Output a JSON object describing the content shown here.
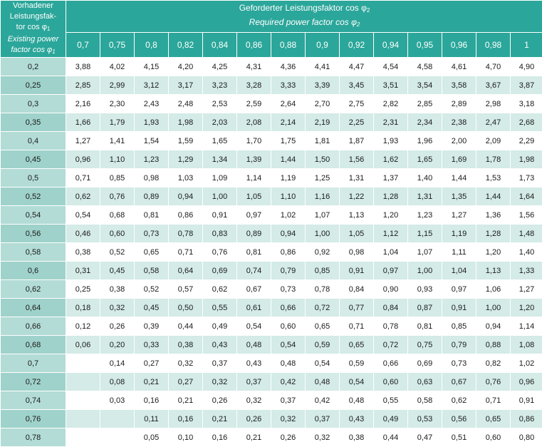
{
  "header": {
    "corner_de": [
      "Vorhadener",
      "Leistungsfak-",
      "tor cos φ"
    ],
    "corner_de_sub": "1",
    "corner_en": [
      "Existing power",
      "factor cos φ"
    ],
    "corner_en_sub": "1",
    "title_de": "Geforderter Leistungsfaktor cos φ",
    "title_de_sub": "2",
    "title_en": "Required power factor cos φ",
    "title_en_sub": "2",
    "columns": [
      "0,7",
      "0,75",
      "0,8",
      "0,82",
      "0,84",
      "0,86",
      "0,88",
      "0,9",
      "0,92",
      "0,94",
      "0,95",
      "0,96",
      "0,98",
      "1"
    ]
  },
  "rows": [
    {
      "label": "0,2",
      "values": [
        "3,88",
        "4,02",
        "4,15",
        "4,20",
        "4,25",
        "4,31",
        "4,36",
        "4,41",
        "4,47",
        "4,54",
        "4,58",
        "4,61",
        "4,70",
        "4,90"
      ]
    },
    {
      "label": "0,25",
      "values": [
        "2,85",
        "2,99",
        "3,12",
        "3,17",
        "3,23",
        "3,28",
        "3,33",
        "3,39",
        "3,45",
        "3,51",
        "3,54",
        "3,58",
        "3,67",
        "3,87"
      ]
    },
    {
      "label": "0,3",
      "values": [
        "2,16",
        "2,30",
        "2,43",
        "2,48",
        "2,53",
        "2,59",
        "2,64",
        "2,70",
        "2,75",
        "2,82",
        "2,85",
        "2,89",
        "2,98",
        "3,18"
      ]
    },
    {
      "label": "0,35",
      "values": [
        "1,66",
        "1,79",
        "1,93",
        "1,98",
        "2,03",
        "2,08",
        "2,14",
        "2,19",
        "2,25",
        "2,31",
        "2,34",
        "2,38",
        "2,47",
        "2,68"
      ]
    },
    {
      "label": "0,4",
      "values": [
        "1,27",
        "1,41",
        "1,54",
        "1,59",
        "1,65",
        "1,70",
        "1,75",
        "1,81",
        "1,87",
        "1,93",
        "1,96",
        "2,00",
        "2,09",
        "2,29"
      ]
    },
    {
      "label": "0,45",
      "values": [
        "0,96",
        "1,10",
        "1,23",
        "1,29",
        "1,34",
        "1,39",
        "1,44",
        "1,50",
        "1,56",
        "1,62",
        "1,65",
        "1,69",
        "1,78",
        "1,98"
      ]
    },
    {
      "label": "0,5",
      "values": [
        "0,71",
        "0,85",
        "0,98",
        "1,03",
        "1,09",
        "1,14",
        "1,19",
        "1,25",
        "1,31",
        "1,37",
        "1,40",
        "1,44",
        "1,53",
        "1,73"
      ]
    },
    {
      "label": "0,52",
      "values": [
        "0,62",
        "0,76",
        "0,89",
        "0,94",
        "1,00",
        "1,05",
        "1,10",
        "1,16",
        "1,22",
        "1,28",
        "1,31",
        "1,35",
        "1,44",
        "1,64"
      ]
    },
    {
      "label": "0,54",
      "values": [
        "0,54",
        "0,68",
        "0,81",
        "0,86",
        "0,91",
        "0,97",
        "1,02",
        "1,07",
        "1,13",
        "1,20",
        "1,23",
        "1,27",
        "1,36",
        "1,56"
      ]
    },
    {
      "label": "0,56",
      "values": [
        "0,46",
        "0,60",
        "0,73",
        "0,78",
        "0,83",
        "0,89",
        "0,94",
        "1,00",
        "1,05",
        "1,12",
        "1,15",
        "1,19",
        "1,28",
        "1,48"
      ]
    },
    {
      "label": "0,58",
      "values": [
        "0,38",
        "0,52",
        "0,65",
        "0,71",
        "0,76",
        "0,81",
        "0,86",
        "0,92",
        "0,98",
        "1,04",
        "1,07",
        "1,11",
        "1,20",
        "1,40"
      ]
    },
    {
      "label": "0,6",
      "values": [
        "0,31",
        "0,45",
        "0,58",
        "0,64",
        "0,69",
        "0,74",
        "0,79",
        "0,85",
        "0,91",
        "0,97",
        "1,00",
        "1,04",
        "1,13",
        "1,33"
      ]
    },
    {
      "label": "0,62",
      "values": [
        "0,25",
        "0,38",
        "0,52",
        "0,57",
        "0,62",
        "0,67",
        "0,73",
        "0,78",
        "0,84",
        "0,90",
        "0,93",
        "0,97",
        "1,06",
        "1,27"
      ]
    },
    {
      "label": "0,64",
      "values": [
        "0,18",
        "0,32",
        "0,45",
        "0,50",
        "0,55",
        "0,61",
        "0,66",
        "0,72",
        "0,77",
        "0,84",
        "0,87",
        "0,91",
        "1,00",
        "1,20"
      ]
    },
    {
      "label": "0,66",
      "values": [
        "0,12",
        "0,26",
        "0,39",
        "0,44",
        "0,49",
        "0,54",
        "0,60",
        "0,65",
        "0,71",
        "0,78",
        "0,81",
        "0,85",
        "0,94",
        "1,14"
      ]
    },
    {
      "label": "0,68",
      "values": [
        "0,06",
        "0,20",
        "0,33",
        "0,38",
        "0,43",
        "0,48",
        "0,54",
        "0,59",
        "0,65",
        "0,72",
        "0,75",
        "0,79",
        "0,88",
        "1,08"
      ]
    },
    {
      "label": "0,7",
      "values": [
        "",
        "0,14",
        "0,27",
        "0,32",
        "0,37",
        "0,43",
        "0,48",
        "0,54",
        "0,59",
        "0,66",
        "0,69",
        "0,73",
        "0,82",
        "1,02"
      ]
    },
    {
      "label": "0,72",
      "values": [
        "",
        "0,08",
        "0,21",
        "0,27",
        "0,32",
        "0,37",
        "0,42",
        "0,48",
        "0,54",
        "0,60",
        "0,63",
        "0,67",
        "0,76",
        "0,96"
      ]
    },
    {
      "label": "0,74",
      "values": [
        "",
        "0,03",
        "0,16",
        "0,21",
        "0,26",
        "0,32",
        "0,37",
        "0,42",
        "0,48",
        "0,55",
        "0,58",
        "0,62",
        "0,71",
        "0,91"
      ]
    },
    {
      "label": "0,76",
      "values": [
        "",
        "",
        "0,11",
        "0,16",
        "0,21",
        "0,26",
        "0,32",
        "0,37",
        "0,43",
        "0,49",
        "0,53",
        "0,56",
        "0,65",
        "0,86"
      ]
    },
    {
      "label": "0,78",
      "values": [
        "",
        "",
        "0,05",
        "0,10",
        "0,16",
        "0,21",
        "0,26",
        "0,32",
        "0,38",
        "0,44",
        "0,47",
        "0,51",
        "0,60",
        "0,80"
      ]
    }
  ]
}
